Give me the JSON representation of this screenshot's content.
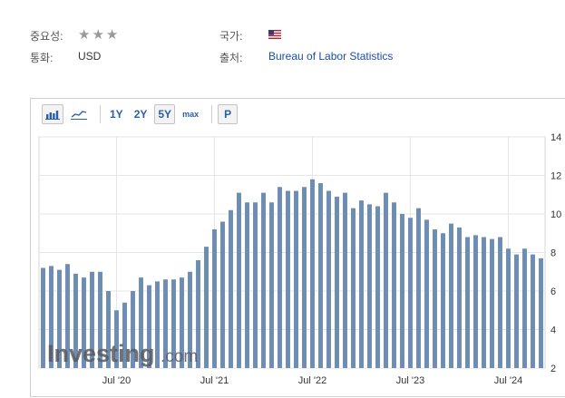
{
  "meta": {
    "importance_label": "중요성:",
    "importance_stars": 3,
    "country_label": "국가:",
    "country_flag": "us-flag-icon",
    "currency_label": "통화:",
    "currency_value": "USD",
    "source_label": "출처:",
    "source_value": "Bureau of Labor Statistics"
  },
  "toolbar": {
    "bar_chart_icon": "bar-chart-icon",
    "line_chart_icon": "line-chart-icon",
    "ranges": [
      "1Y",
      "2Y",
      "5Y",
      "max"
    ],
    "active_range": "5Y",
    "p_label": "P"
  },
  "watermark": {
    "brand": "Investing",
    "suffix": ".com"
  },
  "colors": {
    "bar": "#6d8db5",
    "accent": "#2b5ea8",
    "grid": "#e6e6e6"
  },
  "chart_data": {
    "type": "bar",
    "ylim": [
      2,
      14
    ],
    "yticks": [
      2,
      4,
      6,
      8,
      10,
      12,
      14
    ],
    "x_tick_labels": [
      {
        "label": "Jul '20",
        "index": 9
      },
      {
        "label": "Jul '21",
        "index": 21
      },
      {
        "label": "Jul '22",
        "index": 33
      },
      {
        "label": "Jul '23",
        "index": 45
      },
      {
        "label": "Jul '24",
        "index": 57
      }
    ],
    "values": [
      7.2,
      7.3,
      7.1,
      7.4,
      6.9,
      6.7,
      7.0,
      7.0,
      6.0,
      5.0,
      5.4,
      6.0,
      6.7,
      6.3,
      6.5,
      6.6,
      6.6,
      6.7,
      7.0,
      7.6,
      8.3,
      9.2,
      9.6,
      10.2,
      11.1,
      10.6,
      10.6,
      11.1,
      10.6,
      11.4,
      11.2,
      11.2,
      11.4,
      11.8,
      11.6,
      11.2,
      10.9,
      11.1,
      10.3,
      10.7,
      10.5,
      10.4,
      11.1,
      10.6,
      10.0,
      9.8,
      10.3,
      9.7,
      9.2,
      9.0,
      9.5,
      9.3,
      8.8,
      8.9,
      8.8,
      8.7,
      8.8,
      8.2,
      7.9,
      8.2,
      7.9,
      7.7
    ]
  }
}
